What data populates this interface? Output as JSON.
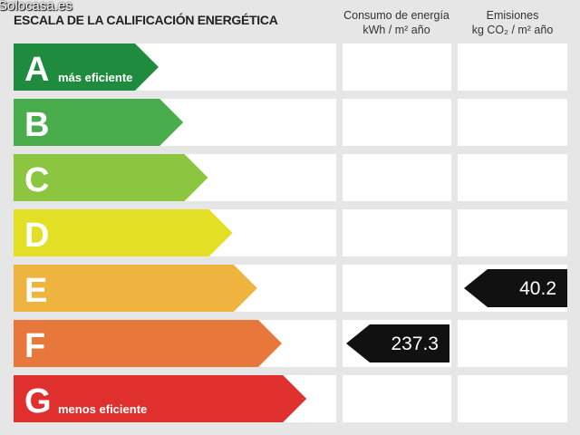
{
  "watermark": "Solocasa.es",
  "header": {
    "title": "ESCALA DE LA CALIFICACIÓN ENERGÉTICA",
    "consumo": {
      "line1": "Consumo de energía",
      "line2": "kWh / m² año"
    },
    "emisiones": {
      "line1": "Emisiones",
      "line2": "kg CO₂ / m² año"
    }
  },
  "rows": [
    {
      "letter": "A",
      "label": "más eficiente",
      "color": "#1f8b3f",
      "consumo": null,
      "emisiones": null
    },
    {
      "letter": "B",
      "label": null,
      "color": "#4aad4c",
      "consumo": null,
      "emisiones": null
    },
    {
      "letter": "C",
      "label": null,
      "color": "#8cc540",
      "consumo": null,
      "emisiones": null
    },
    {
      "letter": "D",
      "label": null,
      "color": "#e3df24",
      "consumo": null,
      "emisiones": null
    },
    {
      "letter": "E",
      "label": null,
      "color": "#efb43f",
      "consumo": null,
      "emisiones": "40.2"
    },
    {
      "letter": "F",
      "label": null,
      "color": "#e7773a",
      "consumo": "237.3",
      "emisiones": null
    },
    {
      "letter": "G",
      "label": "menos eficiente",
      "color": "#df302d",
      "consumo": null,
      "emisiones": null
    }
  ]
}
